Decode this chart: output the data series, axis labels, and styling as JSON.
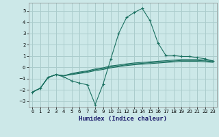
{
  "xlabel": "Humidex (Indice chaleur)",
  "bg_color": "#cce8e8",
  "grid_color": "#aacccc",
  "line_color": "#1a7060",
  "xlim": [
    -0.5,
    23.5
  ],
  "ylim": [
    -3.5,
    5.7
  ],
  "xticks": [
    0,
    1,
    2,
    3,
    4,
    5,
    6,
    7,
    8,
    9,
    10,
    11,
    12,
    13,
    14,
    15,
    16,
    17,
    18,
    19,
    20,
    21,
    22,
    23
  ],
  "yticks": [
    -3,
    -2,
    -1,
    0,
    1,
    2,
    3,
    4,
    5
  ],
  "s1_x": [
    0,
    1,
    2,
    3,
    4,
    5,
    6,
    7,
    8,
    9,
    10,
    11,
    12,
    13,
    14,
    15,
    16,
    17,
    18,
    19,
    20,
    21,
    22,
    23
  ],
  "s1_y": [
    -2.2,
    -1.85,
    -0.9,
    -0.65,
    -0.85,
    -1.2,
    -1.4,
    -1.55,
    -3.3,
    -1.5,
    0.75,
    3.0,
    4.4,
    4.85,
    5.2,
    4.1,
    2.15,
    1.05,
    1.05,
    0.95,
    0.95,
    0.85,
    0.75,
    0.55
  ],
  "s2_x": [
    0,
    1,
    2,
    3,
    4,
    5,
    6,
    7,
    8,
    9,
    10,
    11,
    12,
    13,
    14,
    15,
    16,
    17,
    18,
    19,
    20,
    21,
    22,
    23
  ],
  "s2_y": [
    -2.2,
    -1.85,
    -0.9,
    -0.65,
    -0.75,
    -0.65,
    -0.55,
    -0.45,
    -0.3,
    -0.2,
    -0.05,
    0.05,
    0.15,
    0.22,
    0.27,
    0.32,
    0.37,
    0.42,
    0.47,
    0.52,
    0.52,
    0.52,
    0.48,
    0.43
  ],
  "s3_x": [
    0,
    1,
    2,
    3,
    4,
    5,
    6,
    7,
    8,
    9,
    10,
    11,
    12,
    13,
    14,
    15,
    16,
    17,
    18,
    19,
    20,
    21,
    22,
    23
  ],
  "s3_y": [
    -2.2,
    -1.85,
    -0.9,
    -0.65,
    -0.75,
    -0.6,
    -0.48,
    -0.38,
    -0.22,
    -0.12,
    0.03,
    0.12,
    0.22,
    0.3,
    0.35,
    0.4,
    0.45,
    0.5,
    0.55,
    0.6,
    0.6,
    0.6,
    0.56,
    0.5
  ],
  "s4_x": [
    0,
    1,
    2,
    3,
    4,
    5,
    6,
    7,
    8,
    9,
    10,
    11,
    12,
    13,
    14,
    15,
    16,
    17,
    18,
    19,
    20,
    21,
    22,
    23
  ],
  "s4_y": [
    -2.2,
    -1.85,
    -0.9,
    -0.65,
    -0.75,
    -0.55,
    -0.42,
    -0.32,
    -0.15,
    -0.05,
    0.12,
    0.2,
    0.3,
    0.38,
    0.43,
    0.48,
    0.53,
    0.58,
    0.63,
    0.68,
    0.68,
    0.68,
    0.64,
    0.58
  ]
}
